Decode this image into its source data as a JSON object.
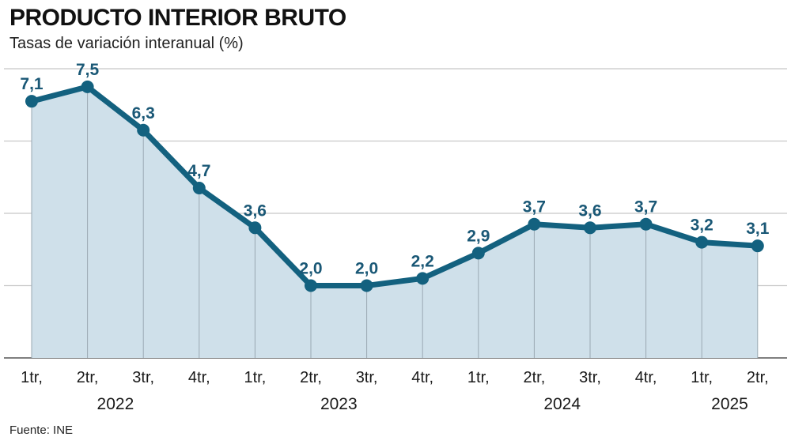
{
  "header": {
    "title": "PRODUCTO INTERIOR BRUTO",
    "subtitle": "Tasas de variación interanual (%)"
  },
  "footer": {
    "source": "Fuente: INE"
  },
  "colors": {
    "line": "#13617f",
    "area": "#cfe0ea",
    "label": "#1a5876",
    "grid": "#c8c8c8"
  },
  "chart_data": {
    "type": "area",
    "title": "PRODUCTO INTERIOR BRUTO",
    "subtitle": "Tasas de variación interanual (%)",
    "categories": [
      "1tr,",
      "2tr,",
      "3tr,",
      "4tr,",
      "1tr,",
      "2tr,",
      "3tr,",
      "4tr,",
      "1tr,",
      "2tr,",
      "3tr,",
      "4tr,",
      "1tr,",
      "2tr,"
    ],
    "years": [
      {
        "label": "2022",
        "from": 0,
        "to": 3
      },
      {
        "label": "2023",
        "from": 4,
        "to": 7
      },
      {
        "label": "2024",
        "from": 8,
        "to": 11
      },
      {
        "label": "2025",
        "from": 12,
        "to": 13
      }
    ],
    "values": [
      7.1,
      7.5,
      6.3,
      4.7,
      3.6,
      2.0,
      2.0,
      2.2,
      2.9,
      3.7,
      3.6,
      3.7,
      3.2,
      3.1
    ],
    "value_labels": [
      "7,1",
      "7,5",
      "6,3",
      "4,7",
      "3,6",
      "2,0",
      "2,0",
      "2,2",
      "2,9",
      "3,7",
      "3,6",
      "3,7",
      "3,2",
      "3,1"
    ],
    "ylim": [
      0,
      8
    ],
    "gridlines": [
      2,
      4,
      6,
      8
    ],
    "grid": true,
    "xlabel": "",
    "ylabel": ""
  }
}
